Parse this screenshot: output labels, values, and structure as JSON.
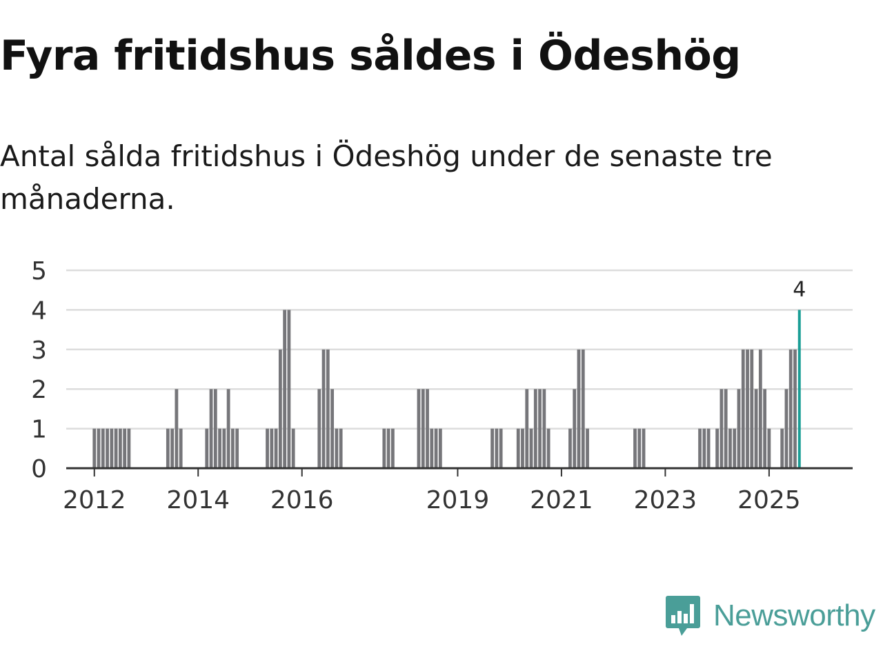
{
  "header": {
    "title": "Fyra fritidshus såldes i Ödeshög",
    "subtitle": "Antal sålda fritidshus i Ödeshög under de senaste tre månaderna."
  },
  "brand": {
    "name": "Newsworthy",
    "icon": "newsworthy-logo-icon"
  },
  "colors": {
    "bar": "#76767a",
    "highlight": "#1a9e96",
    "grid": "#dcdcdc",
    "axis": "#333333",
    "brand": "#4a9e98"
  },
  "chart_data": {
    "type": "bar",
    "title": "Antal sålda fritidshus i Ödeshög under de senaste tre månaderna.",
    "xlabel": "",
    "ylabel": "",
    "ylim": [
      0,
      5
    ],
    "y_ticks": [
      0,
      1,
      2,
      3,
      4,
      5
    ],
    "x_ticks": [
      "2012",
      "2014",
      "2016",
      "2019",
      "2021",
      "2023",
      "2025"
    ],
    "x_range": [
      "2011-07",
      "2026-08"
    ],
    "highlight_label": "4",
    "series": [
      {
        "name": "Antal sålda fritidshus",
        "points": [
          {
            "month": "2012-01",
            "value": 1
          },
          {
            "month": "2012-02",
            "value": 1
          },
          {
            "month": "2012-03",
            "value": 1
          },
          {
            "month": "2012-04",
            "value": 1
          },
          {
            "month": "2012-05",
            "value": 1
          },
          {
            "month": "2012-06",
            "value": 1
          },
          {
            "month": "2012-07",
            "value": 1
          },
          {
            "month": "2012-08",
            "value": 1
          },
          {
            "month": "2012-09",
            "value": 1
          },
          {
            "month": "2013-06",
            "value": 1
          },
          {
            "month": "2013-07",
            "value": 1
          },
          {
            "month": "2013-08",
            "value": 2
          },
          {
            "month": "2013-09",
            "value": 1
          },
          {
            "month": "2014-03",
            "value": 1
          },
          {
            "month": "2014-04",
            "value": 2
          },
          {
            "month": "2014-05",
            "value": 2
          },
          {
            "month": "2014-06",
            "value": 1
          },
          {
            "month": "2014-07",
            "value": 1
          },
          {
            "month": "2014-08",
            "value": 2
          },
          {
            "month": "2014-09",
            "value": 1
          },
          {
            "month": "2014-10",
            "value": 1
          },
          {
            "month": "2015-05",
            "value": 1
          },
          {
            "month": "2015-06",
            "value": 1
          },
          {
            "month": "2015-07",
            "value": 1
          },
          {
            "month": "2015-08",
            "value": 3
          },
          {
            "month": "2015-09",
            "value": 4
          },
          {
            "month": "2015-10",
            "value": 4
          },
          {
            "month": "2015-11",
            "value": 1
          },
          {
            "month": "2016-05",
            "value": 2
          },
          {
            "month": "2016-06",
            "value": 3
          },
          {
            "month": "2016-07",
            "value": 3
          },
          {
            "month": "2016-08",
            "value": 2
          },
          {
            "month": "2016-09",
            "value": 1
          },
          {
            "month": "2016-10",
            "value": 1
          },
          {
            "month": "2017-08",
            "value": 1
          },
          {
            "month": "2017-09",
            "value": 1
          },
          {
            "month": "2017-10",
            "value": 1
          },
          {
            "month": "2018-04",
            "value": 2
          },
          {
            "month": "2018-05",
            "value": 2
          },
          {
            "month": "2018-06",
            "value": 2
          },
          {
            "month": "2018-07",
            "value": 1
          },
          {
            "month": "2018-08",
            "value": 1
          },
          {
            "month": "2018-09",
            "value": 1
          },
          {
            "month": "2019-09",
            "value": 1
          },
          {
            "month": "2019-10",
            "value": 1
          },
          {
            "month": "2019-11",
            "value": 1
          },
          {
            "month": "2020-03",
            "value": 1
          },
          {
            "month": "2020-04",
            "value": 1
          },
          {
            "month": "2020-05",
            "value": 2
          },
          {
            "month": "2020-06",
            "value": 1
          },
          {
            "month": "2020-07",
            "value": 2
          },
          {
            "month": "2020-08",
            "value": 2
          },
          {
            "month": "2020-09",
            "value": 2
          },
          {
            "month": "2020-10",
            "value": 1
          },
          {
            "month": "2021-03",
            "value": 1
          },
          {
            "month": "2021-04",
            "value": 2
          },
          {
            "month": "2021-05",
            "value": 3
          },
          {
            "month": "2021-06",
            "value": 3
          },
          {
            "month": "2021-07",
            "value": 1
          },
          {
            "month": "2022-06",
            "value": 1
          },
          {
            "month": "2022-07",
            "value": 1
          },
          {
            "month": "2022-08",
            "value": 1
          },
          {
            "month": "2023-09",
            "value": 1
          },
          {
            "month": "2023-10",
            "value": 1
          },
          {
            "month": "2023-11",
            "value": 1
          },
          {
            "month": "2024-01",
            "value": 1
          },
          {
            "month": "2024-02",
            "value": 2
          },
          {
            "month": "2024-03",
            "value": 2
          },
          {
            "month": "2024-04",
            "value": 1
          },
          {
            "month": "2024-05",
            "value": 1
          },
          {
            "month": "2024-06",
            "value": 2
          },
          {
            "month": "2024-07",
            "value": 3
          },
          {
            "month": "2024-08",
            "value": 3
          },
          {
            "month": "2024-09",
            "value": 3
          },
          {
            "month": "2024-10",
            "value": 2
          },
          {
            "month": "2024-11",
            "value": 3
          },
          {
            "month": "2024-12",
            "value": 2
          },
          {
            "month": "2025-01",
            "value": 1
          },
          {
            "month": "2025-04",
            "value": 1
          },
          {
            "month": "2025-05",
            "value": 2
          },
          {
            "month": "2025-06",
            "value": 3
          },
          {
            "month": "2025-07",
            "value": 3
          },
          {
            "month": "2025-08",
            "value": 4,
            "highlight": true
          }
        ]
      }
    ]
  }
}
